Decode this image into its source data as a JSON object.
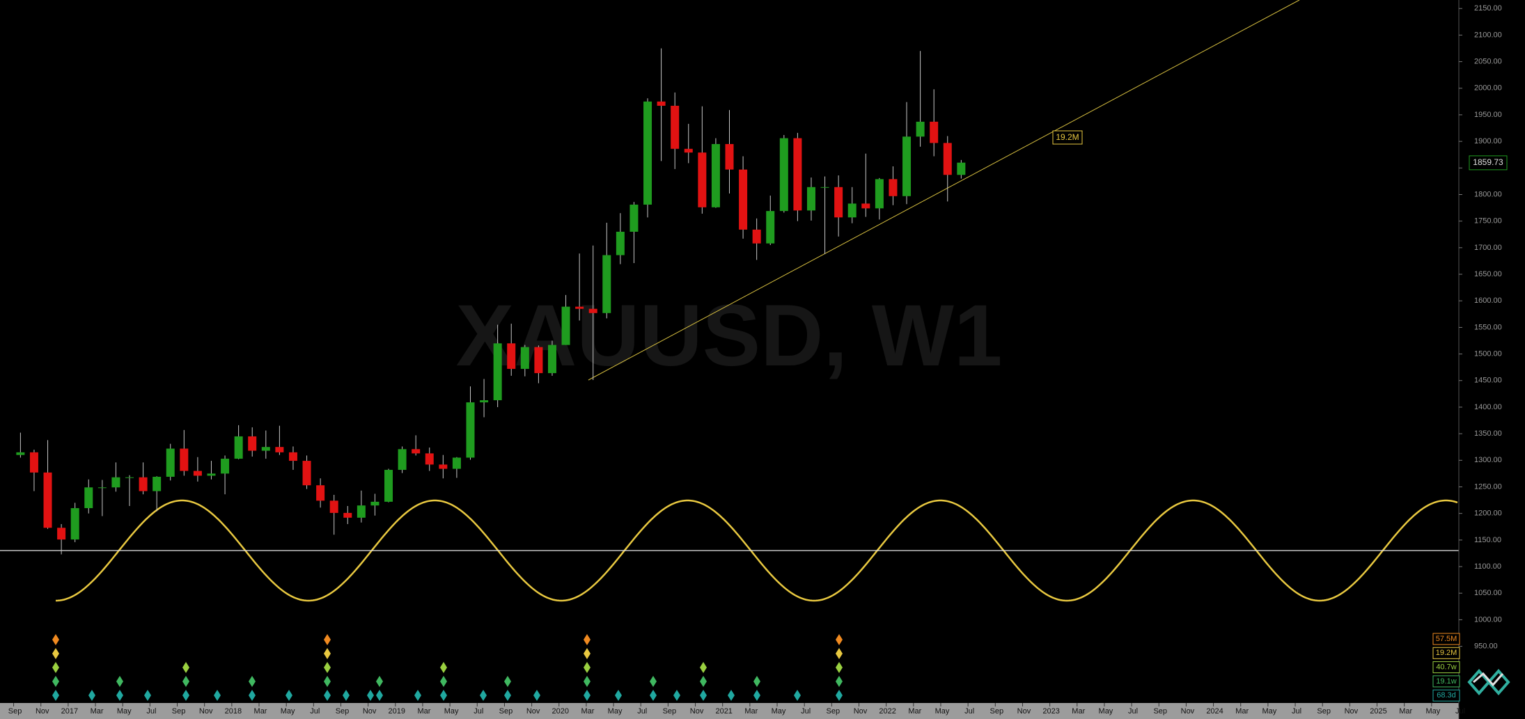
{
  "chart_data": {
    "type": "candlestick",
    "watermark": "XAUUSD, W1",
    "x": [
      "2016-09",
      "2016-10",
      "2016-11",
      "2016-12",
      "2017-01",
      "2017-02",
      "2017-03",
      "2017-04",
      "2017-05",
      "2017-06",
      "2017-07",
      "2017-08",
      "2017-09",
      "2017-10",
      "2017-11",
      "2017-12",
      "2018-01",
      "2018-02",
      "2018-03",
      "2018-04",
      "2018-05",
      "2018-06",
      "2018-07",
      "2018-08",
      "2018-09",
      "2018-10",
      "2018-11",
      "2018-12",
      "2019-01",
      "2019-02",
      "2019-03",
      "2019-04",
      "2019-05",
      "2019-06",
      "2019-07",
      "2019-08",
      "2019-09",
      "2019-10",
      "2019-11",
      "2019-12",
      "2020-01",
      "2020-02",
      "2020-03",
      "2020-04",
      "2020-05",
      "2020-06",
      "2020-07",
      "2020-08",
      "2020-09",
      "2020-10",
      "2020-11",
      "2020-12",
      "2021-01",
      "2021-02",
      "2021-03",
      "2021-04",
      "2021-05",
      "2021-06",
      "2021-07",
      "2021-08",
      "2021-09",
      "2021-10",
      "2021-11",
      "2021-12",
      "2022-01",
      "2022-02",
      "2022-03",
      "2022-04",
      "2022-05",
      "2022-06"
    ],
    "open": [
      1310,
      1315,
      1277,
      1173,
      1151,
      1210,
      1249,
      1249,
      1268,
      1268,
      1242,
      1269,
      1322,
      1280,
      1271,
      1275,
      1303,
      1345,
      1318,
      1325,
      1315,
      1299,
      1253,
      1224,
      1201,
      1192,
      1215,
      1222,
      1282,
      1321,
      1313,
      1292,
      1284,
      1305,
      1409,
      1413,
      1520,
      1472,
      1513,
      1464,
      1517,
      1589,
      1585,
      1577,
      1686,
      1730,
      1781,
      1975,
      1967,
      1886,
      1879,
      1776,
      1895,
      1847,
      1734,
      1708,
      1769,
      1906,
      1770,
      1814,
      1814,
      1757,
      1783,
      1774,
      1829,
      1797,
      1909,
      1937,
      1897,
      1837
    ],
    "high": [
      1352,
      1320,
      1338,
      1180,
      1220,
      1264,
      1263,
      1296,
      1272,
      1296,
      1270,
      1331,
      1357,
      1306,
      1299,
      1309,
      1366,
      1362,
      1356,
      1365,
      1326,
      1309,
      1266,
      1235,
      1214,
      1243,
      1237,
      1284,
      1326,
      1347,
      1324,
      1310,
      1306,
      1439,
      1453,
      1555,
      1557,
      1517,
      1516,
      1525,
      1611,
      1689,
      1704,
      1747,
      1765,
      1786,
      1981,
      2075,
      1992,
      1933,
      1966,
      1906,
      1959,
      1872,
      1755,
      1798,
      1912,
      1916,
      1832,
      1834,
      1836,
      1814,
      1877,
      1831,
      1853,
      1974,
      2070,
      1998,
      1910,
      1865
    ],
    "low": [
      1305,
      1242,
      1171,
      1123,
      1146,
      1200,
      1195,
      1241,
      1214,
      1236,
      1204,
      1262,
      1271,
      1260,
      1264,
      1236,
      1302,
      1307,
      1303,
      1310,
      1282,
      1246,
      1211,
      1160,
      1180,
      1183,
      1196,
      1221,
      1276,
      1309,
      1280,
      1266,
      1267,
      1301,
      1381,
      1400,
      1459,
      1458,
      1445,
      1459,
      1517,
      1563,
      1451,
      1567,
      1669,
      1671,
      1757,
      1863,
      1848,
      1859,
      1764,
      1775,
      1802,
      1717,
      1677,
      1705,
      1766,
      1750,
      1751,
      1688,
      1721,
      1746,
      1758,
      1753,
      1780,
      1782,
      1890,
      1872,
      1787,
      1830
    ],
    "close": [
      1315,
      1277,
      1173,
      1151,
      1210,
      1249,
      1249,
      1268,
      1268,
      1242,
      1269,
      1322,
      1280,
      1271,
      1275,
      1303,
      1345,
      1318,
      1325,
      1315,
      1299,
      1253,
      1224,
      1201,
      1192,
      1215,
      1222,
      1282,
      1321,
      1313,
      1292,
      1284,
      1305,
      1409,
      1413,
      1520,
      1472,
      1513,
      1464,
      1517,
      1589,
      1585,
      1577,
      1686,
      1730,
      1781,
      1975,
      1967,
      1886,
      1879,
      1776,
      1895,
      1847,
      1734,
      1708,
      1769,
      1906,
      1770,
      1814,
      1814,
      1757,
      1783,
      1774,
      1829,
      1797,
      1909,
      1937,
      1897,
      1837,
      1860
    ],
    "up_color": "#1f9c1f",
    "down_color": "#e21212",
    "xlim": [
      "2016-08",
      "2025-07"
    ],
    "xticks": [
      {
        "value": "2016-09",
        "label": "Sep"
      },
      {
        "value": "2016-11",
        "label": "Nov"
      },
      {
        "value": "2017-01",
        "label": "2017"
      },
      {
        "value": "2017-03",
        "label": "Mar"
      },
      {
        "value": "2017-05",
        "label": "May"
      },
      {
        "value": "2017-07",
        "label": "Jul"
      },
      {
        "value": "2017-09",
        "label": "Sep"
      },
      {
        "value": "2017-11",
        "label": "Nov"
      },
      {
        "value": "2018-01",
        "label": "2018"
      },
      {
        "value": "2018-03",
        "label": "Mar"
      },
      {
        "value": "2018-05",
        "label": "May"
      },
      {
        "value": "2018-07",
        "label": "Jul"
      },
      {
        "value": "2018-09",
        "label": "Sep"
      },
      {
        "value": "2018-11",
        "label": "Nov"
      },
      {
        "value": "2019-01",
        "label": "2019"
      },
      {
        "value": "2019-03",
        "label": "Mar"
      },
      {
        "value": "2019-05",
        "label": "May"
      },
      {
        "value": "2019-07",
        "label": "Jul"
      },
      {
        "value": "2019-09",
        "label": "Sep"
      },
      {
        "value": "2019-11",
        "label": "Nov"
      },
      {
        "value": "2020-01",
        "label": "2020"
      },
      {
        "value": "2020-03",
        "label": "Mar"
      },
      {
        "value": "2020-05",
        "label": "May"
      },
      {
        "value": "2020-07",
        "label": "Jul"
      },
      {
        "value": "2020-09",
        "label": "Sep"
      },
      {
        "value": "2020-11",
        "label": "Nov"
      },
      {
        "value": "2021-01",
        "label": "2021"
      },
      {
        "value": "2021-03",
        "label": "Mar"
      },
      {
        "value": "2021-05",
        "label": "May"
      },
      {
        "value": "2021-07",
        "label": "Jul"
      },
      {
        "value": "2021-09",
        "label": "Sep"
      },
      {
        "value": "2021-11",
        "label": "Nov"
      },
      {
        "value": "2022-01",
        "label": "2022"
      },
      {
        "value": "2022-03",
        "label": "Mar"
      },
      {
        "value": "2022-05",
        "label": "May"
      },
      {
        "value": "2022-07",
        "label": "Jul"
      },
      {
        "value": "2022-09",
        "label": "Sep"
      },
      {
        "value": "2022-11",
        "label": "Nov"
      },
      {
        "value": "2023-01",
        "label": "2023"
      },
      {
        "value": "2023-03",
        "label": "Mar"
      },
      {
        "value": "2023-05",
        "label": "May"
      },
      {
        "value": "2023-07",
        "label": "Jul"
      },
      {
        "value": "2023-09",
        "label": "Sep"
      },
      {
        "value": "2023-11",
        "label": "Nov"
      },
      {
        "value": "2024-01",
        "label": "2024"
      },
      {
        "value": "2024-03",
        "label": "Mar"
      },
      {
        "value": "2024-05",
        "label": "May"
      },
      {
        "value": "2024-07",
        "label": "Jul"
      },
      {
        "value": "2024-09",
        "label": "Sep"
      },
      {
        "value": "2024-11",
        "label": "Nov"
      },
      {
        "value": "2025-01",
        "label": "2025"
      },
      {
        "value": "2025-03",
        "label": "Mar"
      },
      {
        "value": "2025-05",
        "label": "May"
      },
      {
        "value": "2025-07",
        "label": "Jul"
      }
    ],
    "ylim": [
      846,
      2166
    ],
    "yticks": [
      {
        "value": 950,
        "label": "950.00"
      },
      {
        "value": 1000,
        "label": "1000.00"
      },
      {
        "value": 1050,
        "label": "1050.00"
      },
      {
        "value": 1100,
        "label": "1100.00"
      },
      {
        "value": 1150,
        "label": "1150.00"
      },
      {
        "value": 1200,
        "label": "1200.00"
      },
      {
        "value": 1250,
        "label": "1250.00"
      },
      {
        "value": 1300,
        "label": "1300.00"
      },
      {
        "value": 1350,
        "label": "1350.00"
      },
      {
        "value": 1400,
        "label": "1400.00"
      },
      {
        "value": 1450,
        "label": "1450.00"
      },
      {
        "value": 1500,
        "label": "1500.00"
      },
      {
        "value": 1550,
        "label": "1550.00"
      },
      {
        "value": 1600,
        "label": "1600.00"
      },
      {
        "value": 1650,
        "label": "1650.00"
      },
      {
        "value": 1700,
        "label": "1700.00"
      },
      {
        "value": 1750,
        "label": "1750.00"
      },
      {
        "value": 1800,
        "label": "1800.00"
      },
      {
        "value": 1850,
        "label": "1850.00"
      },
      {
        "value": 1900,
        "label": "1900.00"
      },
      {
        "value": 1950,
        "label": "1950.00"
      },
      {
        "value": 2000,
        "label": "2000.00"
      },
      {
        "value": 2050,
        "label": "2050.00"
      },
      {
        "value": 2100,
        "label": "2100.00"
      },
      {
        "value": 2150,
        "label": "2150.00"
      }
    ],
    "last_price": 1859.73,
    "last_price_color": "#1f9c1f",
    "annotation": {
      "text": "19.2M",
      "color": "#e8c840"
    },
    "cycle_labels": [
      {
        "text": "57.5M",
        "color": "#f08a20"
      },
      {
        "text": "19.2M",
        "color": "#e8c840"
      },
      {
        "text": "40.7w",
        "color": "#9ad040"
      },
      {
        "text": "19.1w",
        "color": "#40b860"
      },
      {
        "text": "68.3d",
        "color": "#20a8a0"
      }
    ]
  }
}
